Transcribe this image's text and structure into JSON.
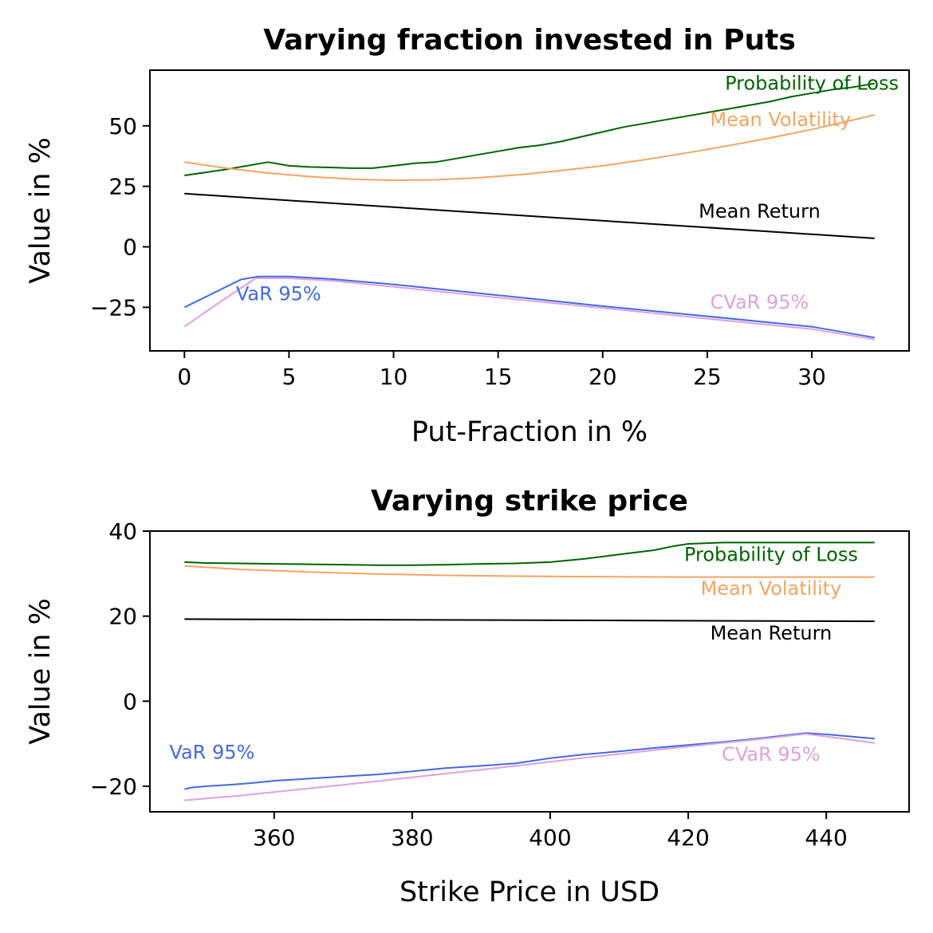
{
  "chart_data": [
    {
      "type": "line",
      "title": "Varying fraction invested in Puts",
      "xlabel": "Put-Fraction in %",
      "ylabel": "Value in %",
      "xlim": [
        -1.65,
        34.65
      ],
      "ylim": [
        -43,
        73
      ],
      "xticks": [
        0,
        5,
        10,
        15,
        20,
        25,
        30
      ],
      "yticks": [
        -25,
        0,
        25,
        50
      ],
      "ytick_labels": [
        "−25",
        "0",
        "25",
        "50"
      ],
      "series": [
        {
          "name": "Probability of Loss",
          "color": "#006400",
          "points": [
            [
              0,
              29.5
            ],
            [
              2,
              32
            ],
            [
              4,
              35
            ],
            [
              5,
              33.5
            ],
            [
              6,
              33
            ],
            [
              7,
              32.8
            ],
            [
              8,
              32.5
            ],
            [
              9,
              32.5
            ],
            [
              10,
              33.5
            ],
            [
              11,
              34.5
            ],
            [
              12,
              35
            ],
            [
              13,
              36.5
            ],
            [
              14,
              38
            ],
            [
              15,
              39.5
            ],
            [
              16,
              41
            ],
            [
              17,
              42
            ],
            [
              18,
              43.5
            ],
            [
              19,
              45.5
            ],
            [
              20,
              47.5
            ],
            [
              21,
              49.5
            ],
            [
              22,
              51
            ],
            [
              23,
              52.5
            ],
            [
              24,
              54
            ],
            [
              25,
              55.5
            ],
            [
              26,
              57
            ],
            [
              27,
              58.5
            ],
            [
              28,
              60
            ],
            [
              29,
              62
            ],
            [
              30,
              63.5
            ],
            [
              31,
              65
            ],
            [
              32,
              66
            ],
            [
              33,
              67.5
            ]
          ]
        },
        {
          "name": "Mean Volatility",
          "color": "#f4a460",
          "points": [
            [
              0,
              35
            ],
            [
              2,
              32.5
            ],
            [
              4,
              30.5
            ],
            [
              6,
              29
            ],
            [
              8,
              28
            ],
            [
              10,
              27.5
            ],
            [
              12,
              27.7
            ],
            [
              14,
              28.5
            ],
            [
              16,
              29.8
            ],
            [
              18,
              31.5
            ],
            [
              20,
              33.5
            ],
            [
              22,
              36
            ],
            [
              24,
              38.8
            ],
            [
              26,
              41.8
            ],
            [
              28,
              45
            ],
            [
              30,
              48.5
            ],
            [
              33,
              54.5
            ]
          ]
        },
        {
          "name": "Mean Return",
          "color": "#000000",
          "points": [
            [
              0,
              22
            ],
            [
              33,
              3.5
            ]
          ]
        },
        {
          "name": "VaR 95%",
          "color": "#4169e1",
          "points": [
            [
              0,
              -25
            ],
            [
              2.7,
              -13.5
            ],
            [
              3.5,
              -12.3
            ],
            [
              5,
              -12.3
            ],
            [
              7,
              -13.3
            ],
            [
              10,
              -15.5
            ],
            [
              15,
              -20
            ],
            [
              20,
              -24.5
            ],
            [
              25,
              -28.7
            ],
            [
              30,
              -33
            ],
            [
              33,
              -37.5
            ]
          ]
        },
        {
          "name": "CVaR 95%",
          "color": "#dda0dd",
          "points": [
            [
              0,
              -33
            ],
            [
              1.5,
              -24
            ],
            [
              3.4,
              -13
            ],
            [
              5,
              -13
            ],
            [
              7,
              -14
            ],
            [
              10,
              -16.5
            ],
            [
              15,
              -21
            ],
            [
              20,
              -25.3
            ],
            [
              25,
              -29.7
            ],
            [
              30,
              -34
            ],
            [
              33,
              -38.3
            ]
          ]
        }
      ],
      "annotations": [
        {
          "text": "Probability of Loss",
          "x": 30,
          "y": 65,
          "color": "#006400",
          "align": "center"
        },
        {
          "text": "Mean Volatility",
          "x": 28.5,
          "y": 50,
          "color": "#f4a460",
          "align": "center"
        },
        {
          "text": "Mean Return",
          "x": 27.5,
          "y": 12,
          "color": "#000000",
          "align": "center"
        },
        {
          "text": "VaR 95%",
          "x": 4.5,
          "y": -22,
          "color": "#4169e1",
          "align": "center"
        },
        {
          "text": "CVaR 95%",
          "x": 27.5,
          "y": -25.5,
          "color": "#dda0dd",
          "align": "center"
        }
      ]
    },
    {
      "type": "line",
      "title": "Varying strike price",
      "xlabel": "Strike Price in USD",
      "ylabel": "Value in %",
      "xlim": [
        342,
        452
      ],
      "ylim": [
        -26,
        40
      ],
      "xticks": [
        360,
        380,
        400,
        420,
        440
      ],
      "yticks": [
        -20,
        0,
        20,
        40
      ],
      "ytick_labels": [
        "−20",
        "0",
        "20",
        "40"
      ],
      "series": [
        {
          "name": "Probability of Loss",
          "color": "#006400",
          "points": [
            [
              347,
              32.7
            ],
            [
              350,
              32.5
            ],
            [
              355,
              32.4
            ],
            [
              360,
              32.3
            ],
            [
              365,
              32.2
            ],
            [
              370,
              32.1
            ],
            [
              375,
              32
            ],
            [
              380,
              32
            ],
            [
              385,
              32.1
            ],
            [
              390,
              32.3
            ],
            [
              395,
              32.4
            ],
            [
              400,
              32.7
            ],
            [
              405,
              33.5
            ],
            [
              410,
              34.5
            ],
            [
              415,
              35.5
            ],
            [
              418,
              36.5
            ],
            [
              420,
              37
            ],
            [
              425,
              37.3
            ],
            [
              430,
              37.3
            ],
            [
              435,
              37.3
            ],
            [
              440,
              37.3
            ],
            [
              447,
              37.3
            ]
          ]
        },
        {
          "name": "Mean Volatility",
          "color": "#f4a460",
          "points": [
            [
              347,
              31.8
            ],
            [
              355,
              31
            ],
            [
              365,
              30.4
            ],
            [
              375,
              29.9
            ],
            [
              385,
              29.6
            ],
            [
              395,
              29.4
            ],
            [
              405,
              29.3
            ],
            [
              420,
              29.2
            ],
            [
              435,
              29.2
            ],
            [
              447,
              29.2
            ]
          ]
        },
        {
          "name": "Mean Return",
          "color": "#000000",
          "points": [
            [
              347,
              19.3
            ],
            [
              447,
              18.8
            ]
          ]
        },
        {
          "name": "VaR 95%",
          "color": "#4169e1",
          "points": [
            [
              347,
              -20.7
            ],
            [
              348,
              -20.3
            ],
            [
              350,
              -20
            ],
            [
              354,
              -19.6
            ],
            [
              357,
              -19.2
            ],
            [
              360,
              -18.7
            ],
            [
              365,
              -18.2
            ],
            [
              370,
              -17.7
            ],
            [
              375,
              -17.2
            ],
            [
              380,
              -16.5
            ],
            [
              385,
              -15.7
            ],
            [
              390,
              -15.2
            ],
            [
              395,
              -14.6
            ],
            [
              400,
              -13.4
            ],
            [
              405,
              -12.5
            ],
            [
              410,
              -11.8
            ],
            [
              415,
              -11
            ],
            [
              420,
              -10.3
            ],
            [
              425,
              -9.6
            ],
            [
              430,
              -8.8
            ],
            [
              437,
              -7.5
            ],
            [
              440,
              -7.8
            ],
            [
              447,
              -8.8
            ]
          ]
        },
        {
          "name": "CVaR 95%",
          "color": "#dda0dd",
          "points": [
            [
              347,
              -23.3
            ],
            [
              355,
              -22.2
            ],
            [
              365,
              -20.5
            ],
            [
              375,
              -18.8
            ],
            [
              385,
              -17
            ],
            [
              395,
              -15.2
            ],
            [
              405,
              -13.3
            ],
            [
              415,
              -11.5
            ],
            [
              425,
              -9.8
            ],
            [
              430,
              -9
            ],
            [
              437,
              -7.7
            ],
            [
              440,
              -8.3
            ],
            [
              447,
              -9.8
            ]
          ]
        }
      ],
      "annotations": [
        {
          "text": "Probability of Loss",
          "x": 432,
          "y": 33,
          "color": "#006400",
          "align": "center"
        },
        {
          "text": "Mean Volatility",
          "x": 432,
          "y": 25,
          "color": "#f4a460",
          "align": "center"
        },
        {
          "text": "Mean Return",
          "x": 432,
          "y": 14.5,
          "color": "#000000",
          "align": "center"
        },
        {
          "text": "VaR 95%",
          "x": 351,
          "y": -13.5,
          "color": "#4169e1",
          "align": "center"
        },
        {
          "text": "CVaR 95%",
          "x": 432,
          "y": -14,
          "color": "#dda0dd",
          "align": "center"
        }
      ]
    }
  ]
}
